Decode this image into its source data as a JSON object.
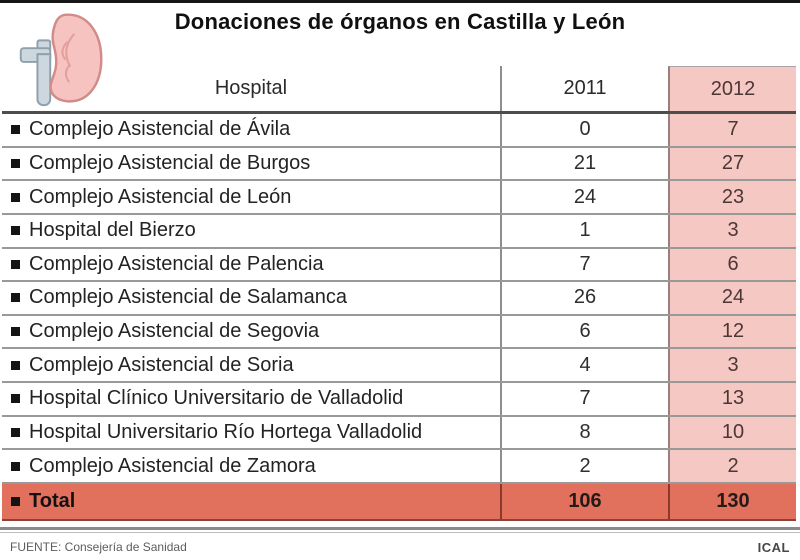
{
  "title": "Donaciones de órganos en Castilla y León",
  "table": {
    "columns": {
      "hospital": "Hospital",
      "y2011": "2011",
      "y2012": "2012"
    },
    "rows": [
      {
        "hospital": "Complejo Asistencial de Ávila",
        "y2011": "0",
        "y2012": "7"
      },
      {
        "hospital": "Complejo Asistencial de Burgos",
        "y2011": "21",
        "y2012": "27"
      },
      {
        "hospital": "Complejo Asistencial de León",
        "y2011": "24",
        "y2012": "23"
      },
      {
        "hospital": "Hospital del Bierzo",
        "y2011": "1",
        "y2012": "3"
      },
      {
        "hospital": "Complejo Asistencial de Palencia",
        "y2011": "7",
        "y2012": "6"
      },
      {
        "hospital": "Complejo Asistencial de Salamanca",
        "y2011": "26",
        "y2012": "24"
      },
      {
        "hospital": "Complejo Asistencial de Segovia",
        "y2011": "6",
        "y2012": "12"
      },
      {
        "hospital": "Complejo Asistencial de Soria",
        "y2011": "4",
        "y2012": "3"
      },
      {
        "hospital": "Hospital Clínico Universitario de Valladolid",
        "y2011": "7",
        "y2012": "13"
      },
      {
        "hospital": "Hospital Universitario Río Hortega Valladolid",
        "y2011": "8",
        "y2012": "10"
      },
      {
        "hospital": "Complejo Asistencial de Zamora",
        "y2011": "2",
        "y2012": "2"
      }
    ],
    "total": {
      "label": "Total",
      "y2011": "106",
      "y2012": "130"
    }
  },
  "footer": {
    "source": "FUENTE: Consejería de Sanidad",
    "credit": "ICAL"
  },
  "icons": {
    "logo": "kidney-icon",
    "row_marker": "bullet-square-icon"
  },
  "colors": {
    "accent_pink": "#f5c8c4",
    "accent_salmon": "#e1705d"
  },
  "chart_data": {
    "type": "table",
    "title": "Donaciones de órganos en Castilla y León",
    "columns": [
      "Hospital",
      "2011",
      "2012"
    ],
    "rows": [
      [
        "Complejo Asistencial de Ávila",
        0,
        7
      ],
      [
        "Complejo Asistencial de Burgos",
        21,
        27
      ],
      [
        "Complejo Asistencial de León",
        24,
        23
      ],
      [
        "Hospital del Bierzo",
        1,
        3
      ],
      [
        "Complejo Asistencial de Palencia",
        7,
        6
      ],
      [
        "Complejo Asistencial de Salamanca",
        26,
        24
      ],
      [
        "Complejo Asistencial de Segovia",
        6,
        12
      ],
      [
        "Complejo Asistencial de Soria",
        4,
        3
      ],
      [
        "Hospital Clínico Universitario de Valladolid",
        7,
        13
      ],
      [
        "Hospital Universitario Río Hortega Valladolid",
        8,
        10
      ],
      [
        "Complejo Asistencial de Zamora",
        2,
        2
      ]
    ],
    "total_row": [
      "Total",
      106,
      130
    ],
    "highlighted_column": "2012",
    "source": "FUENTE: Consejería de Sanidad",
    "credit": "ICAL"
  }
}
